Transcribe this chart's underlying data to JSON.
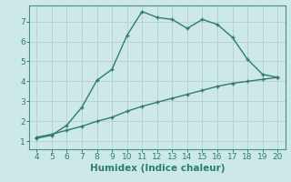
{
  "title": "",
  "xlabel": "Humidex (Indice chaleur)",
  "background_color": "#cce8e8",
  "grid_color": "#b8d0d0",
  "line_color": "#2e7d6e",
  "spine_color": "#4a9080",
  "xlim": [
    3.5,
    20.5
  ],
  "ylim": [
    0.6,
    7.8
  ],
  "xticks": [
    4,
    5,
    6,
    7,
    8,
    9,
    10,
    11,
    12,
    13,
    14,
    15,
    16,
    17,
    18,
    19,
    20
  ],
  "yticks": [
    1,
    2,
    3,
    4,
    5,
    6,
    7
  ],
  "curve1_x": [
    4,
    5,
    6,
    7,
    8,
    9,
    10,
    11,
    12,
    13,
    14,
    15,
    16,
    17,
    18,
    19,
    20
  ],
  "curve1_y": [
    1.15,
    1.3,
    1.8,
    2.7,
    4.05,
    4.6,
    6.3,
    7.5,
    7.2,
    7.1,
    6.65,
    7.1,
    6.85,
    6.2,
    5.1,
    4.35,
    4.2
  ],
  "curve2_x": [
    4,
    5,
    6,
    7,
    8,
    9,
    10,
    11,
    12,
    13,
    14,
    15,
    16,
    17,
    18,
    19,
    20
  ],
  "curve2_y": [
    1.2,
    1.35,
    1.55,
    1.75,
    2.0,
    2.2,
    2.5,
    2.75,
    2.95,
    3.15,
    3.35,
    3.55,
    3.75,
    3.9,
    4.0,
    4.1,
    4.2
  ],
  "tick_fontsize": 6.5,
  "xlabel_fontsize": 7.5,
  "linewidth": 1.0,
  "markersize": 3.5
}
